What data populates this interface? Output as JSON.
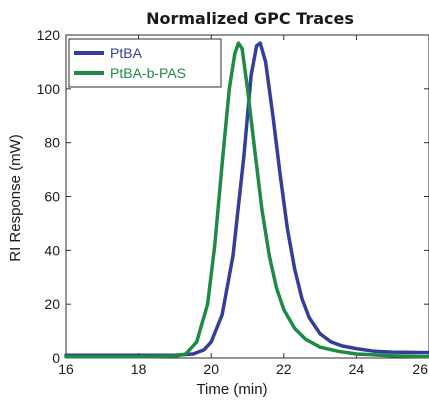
{
  "chart_data": {
    "type": "line",
    "title": "Normalized GPC Traces",
    "xlabel": "Time (min)",
    "ylabel": "RI Response (mW)",
    "xlim": [
      16,
      26
    ],
    "ylim": [
      0,
      120
    ],
    "xticks": [
      16,
      18,
      20,
      22,
      24,
      26
    ],
    "yticks": [
      0,
      20,
      40,
      60,
      80,
      100,
      120
    ],
    "grid": false,
    "legend_position": "top-left",
    "series": [
      {
        "name": "PtBA",
        "color": "#333e9a",
        "x": [
          16,
          18,
          19,
          19.5,
          19.8,
          20.0,
          20.3,
          20.6,
          20.9,
          21.1,
          21.25,
          21.35,
          21.5,
          21.7,
          21.9,
          22.1,
          22.3,
          22.5,
          22.7,
          23.0,
          23.3,
          23.6,
          24.0,
          24.5,
          25.0,
          26.0
        ],
        "y": [
          1,
          1,
          1,
          1.5,
          3,
          6,
          16,
          38,
          75,
          105,
          116,
          117,
          110,
          90,
          68,
          48,
          33,
          22,
          15,
          9,
          6,
          4.5,
          3.5,
          2.5,
          2.2,
          2
        ]
      },
      {
        "name": "PtBA-b-PAS",
        "color": "#1f8a45",
        "x": [
          16,
          18,
          19,
          19.3,
          19.6,
          19.9,
          20.1,
          20.3,
          20.5,
          20.65,
          20.75,
          20.85,
          21.0,
          21.2,
          21.4,
          21.6,
          21.8,
          22.0,
          22.3,
          22.6,
          23.0,
          23.5,
          24.0,
          25.0,
          26.0
        ],
        "y": [
          0.5,
          0.5,
          0.7,
          1.5,
          6,
          20,
          42,
          72,
          100,
          113,
          117,
          115,
          100,
          77,
          55,
          38,
          26,
          18,
          11,
          7,
          4,
          2.5,
          1.5,
          0.8,
          0.5
        ]
      }
    ]
  }
}
